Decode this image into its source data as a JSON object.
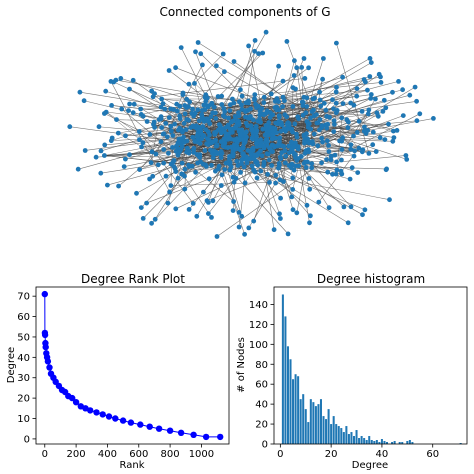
{
  "chart_data": [
    {
      "type": "network",
      "title": "Connected components of G"
    },
    {
      "type": "scatter",
      "title": "Degree Rank Plot",
      "xlabel": "Rank",
      "ylabel": "Degree",
      "xlim": [
        -56,
        1176
      ],
      "ylim": [
        -2.5,
        74.5
      ],
      "x_ticks": [
        0,
        200,
        400,
        600,
        800,
        1000
      ],
      "y_ticks": [
        0,
        10,
        20,
        30,
        40,
        50,
        60,
        70
      ],
      "marker_color": "#0000ff",
      "points": [
        [
          0,
          71
        ],
        [
          1,
          52
        ],
        [
          2,
          51
        ],
        [
          4,
          47
        ],
        [
          6,
          45
        ],
        [
          10,
          42
        ],
        [
          15,
          40
        ],
        [
          20,
          38
        ],
        [
          30,
          35
        ],
        [
          40,
          32
        ],
        [
          55,
          30
        ],
        [
          70,
          28
        ],
        [
          90,
          26
        ],
        [
          110,
          24
        ],
        [
          130,
          23
        ],
        [
          150,
          21
        ],
        [
          175,
          20
        ],
        [
          200,
          18
        ],
        [
          230,
          16
        ],
        [
          260,
          15
        ],
        [
          290,
          14
        ],
        [
          330,
          13
        ],
        [
          370,
          12
        ],
        [
          410,
          11
        ],
        [
          450,
          10
        ],
        [
          500,
          9
        ],
        [
          550,
          8
        ],
        [
          610,
          7
        ],
        [
          670,
          6
        ],
        [
          730,
          5
        ],
        [
          800,
          4
        ],
        [
          870,
          3
        ],
        [
          950,
          2
        ],
        [
          1030,
          1
        ],
        [
          1120,
          1
        ]
      ]
    },
    {
      "type": "bar",
      "title": "Degree histogram",
      "xlabel": "Degree",
      "ylabel": "# of Nodes",
      "xlim": [
        -2.5,
        73.5
      ],
      "ylim": [
        0,
        157.5
      ],
      "x_ticks": [
        0,
        20,
        40,
        60
      ],
      "y_ticks": [
        0,
        20,
        40,
        60,
        80,
        100,
        120,
        140
      ],
      "bar_color": "#1f77b4",
      "x": [
        1,
        2,
        3,
        4,
        5,
        6,
        7,
        8,
        9,
        10,
        11,
        12,
        13,
        14,
        15,
        16,
        17,
        18,
        19,
        20,
        21,
        22,
        23,
        24,
        25,
        26,
        27,
        28,
        29,
        30,
        31,
        32,
        33,
        34,
        35,
        36,
        37,
        38,
        39,
        40,
        41,
        42,
        44,
        45,
        47,
        48,
        50,
        51,
        52,
        71
      ],
      "values": [
        150,
        128,
        98,
        85,
        65,
        70,
        68,
        45,
        50,
        35,
        22,
        45,
        42,
        38,
        40,
        45,
        28,
        25,
        35,
        20,
        28,
        20,
        18,
        16,
        12,
        18,
        10,
        12,
        8,
        14,
        6,
        8,
        6,
        4,
        8,
        4,
        3,
        4,
        2,
        5,
        3,
        2,
        2,
        3,
        2,
        2,
        3,
        4,
        2,
        1
      ]
    }
  ]
}
